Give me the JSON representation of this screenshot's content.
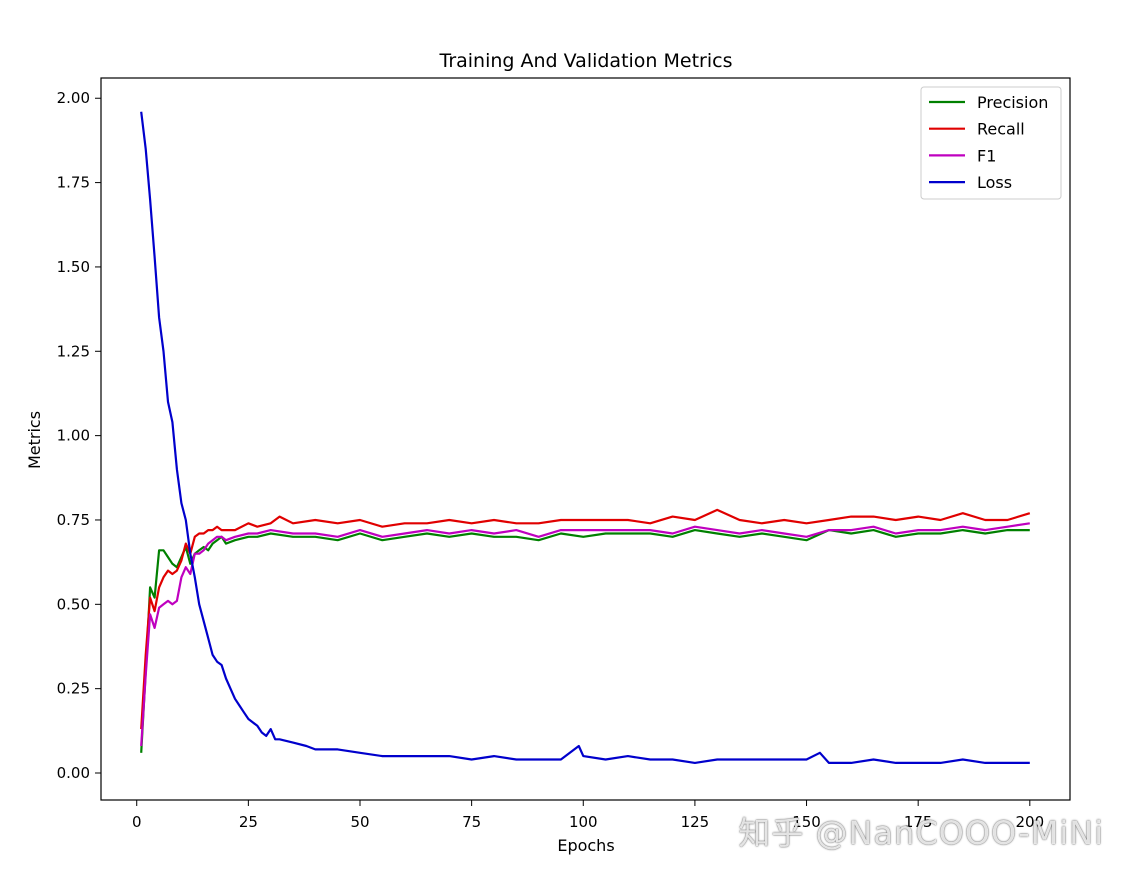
{
  "chart_data": {
    "type": "line",
    "title": "Training And Validation Metrics",
    "xlabel": "Epochs",
    "ylabel": "Metrics",
    "xlim": [
      -8,
      209
    ],
    "ylim": [
      -0.08,
      2.06
    ],
    "xticks": [
      0,
      25,
      50,
      75,
      100,
      125,
      150,
      175,
      200
    ],
    "yticks": [
      0.0,
      0.25,
      0.5,
      0.75,
      1.0,
      1.25,
      1.5,
      1.75,
      2.0
    ],
    "ytick_labels": [
      "0.00",
      "0.25",
      "0.50",
      "0.75",
      "1.00",
      "1.25",
      "1.50",
      "1.75",
      "2.00"
    ],
    "grid": false,
    "legend_position": "top-right",
    "series": [
      {
        "name": "Precision",
        "color": "#008000",
        "x": [
          1,
          2,
          3,
          4,
          5,
          6,
          7,
          8,
          9,
          10,
          11,
          12,
          13,
          14,
          15,
          16,
          17,
          18,
          19,
          20,
          22,
          25,
          27,
          30,
          35,
          40,
          45,
          50,
          55,
          60,
          65,
          70,
          75,
          80,
          85,
          90,
          95,
          100,
          105,
          110,
          115,
          120,
          125,
          130,
          135,
          140,
          145,
          150,
          155,
          160,
          165,
          170,
          175,
          180,
          185,
          190,
          195,
          200
        ],
        "values": [
          0.06,
          0.3,
          0.55,
          0.52,
          0.66,
          0.66,
          0.64,
          0.62,
          0.61,
          0.64,
          0.67,
          0.62,
          0.65,
          0.66,
          0.67,
          0.66,
          0.68,
          0.69,
          0.7,
          0.68,
          0.69,
          0.7,
          0.7,
          0.71,
          0.7,
          0.7,
          0.69,
          0.71,
          0.69,
          0.7,
          0.71,
          0.7,
          0.71,
          0.7,
          0.7,
          0.69,
          0.71,
          0.7,
          0.71,
          0.71,
          0.71,
          0.7,
          0.72,
          0.71,
          0.7,
          0.71,
          0.7,
          0.69,
          0.72,
          0.71,
          0.72,
          0.7,
          0.71,
          0.71,
          0.72,
          0.71,
          0.72,
          0.72
        ]
      },
      {
        "name": "Recall",
        "color": "#e00000",
        "x": [
          1,
          2,
          3,
          4,
          5,
          6,
          7,
          8,
          9,
          10,
          11,
          12,
          13,
          14,
          15,
          16,
          17,
          18,
          19,
          20,
          22,
          25,
          27,
          30,
          32,
          35,
          40,
          45,
          50,
          55,
          60,
          65,
          70,
          75,
          80,
          85,
          90,
          95,
          100,
          105,
          110,
          115,
          120,
          125,
          130,
          135,
          140,
          145,
          150,
          155,
          160,
          165,
          170,
          175,
          180,
          185,
          190,
          195,
          200
        ],
        "values": [
          0.13,
          0.35,
          0.52,
          0.48,
          0.55,
          0.58,
          0.6,
          0.59,
          0.6,
          0.63,
          0.68,
          0.65,
          0.7,
          0.71,
          0.71,
          0.72,
          0.72,
          0.73,
          0.72,
          0.72,
          0.72,
          0.74,
          0.73,
          0.74,
          0.76,
          0.74,
          0.75,
          0.74,
          0.75,
          0.73,
          0.74,
          0.74,
          0.75,
          0.74,
          0.75,
          0.74,
          0.74,
          0.75,
          0.75,
          0.75,
          0.75,
          0.74,
          0.76,
          0.75,
          0.78,
          0.75,
          0.74,
          0.75,
          0.74,
          0.75,
          0.76,
          0.76,
          0.75,
          0.76,
          0.75,
          0.77,
          0.75,
          0.75,
          0.77
        ]
      },
      {
        "name": "F1",
        "color": "#bf00bf",
        "x": [
          1,
          2,
          3,
          4,
          5,
          6,
          7,
          8,
          9,
          10,
          11,
          12,
          13,
          14,
          15,
          16,
          17,
          18,
          19,
          20,
          22,
          25,
          27,
          30,
          35,
          40,
          45,
          50,
          55,
          60,
          65,
          70,
          75,
          80,
          85,
          90,
          95,
          100,
          105,
          110,
          115,
          120,
          125,
          130,
          135,
          140,
          145,
          150,
          155,
          160,
          165,
          170,
          175,
          180,
          185,
          190,
          195,
          200
        ],
        "values": [
          0.08,
          0.29,
          0.47,
          0.43,
          0.49,
          0.5,
          0.51,
          0.5,
          0.51,
          0.58,
          0.61,
          0.59,
          0.65,
          0.65,
          0.66,
          0.68,
          0.69,
          0.7,
          0.7,
          0.69,
          0.7,
          0.71,
          0.71,
          0.72,
          0.71,
          0.71,
          0.7,
          0.72,
          0.7,
          0.71,
          0.72,
          0.71,
          0.72,
          0.71,
          0.72,
          0.7,
          0.72,
          0.72,
          0.72,
          0.72,
          0.72,
          0.71,
          0.73,
          0.72,
          0.71,
          0.72,
          0.71,
          0.7,
          0.72,
          0.72,
          0.73,
          0.71,
          0.72,
          0.72,
          0.73,
          0.72,
          0.73,
          0.74
        ]
      },
      {
        "name": "Loss",
        "color": "#0000cc",
        "x": [
          1,
          2,
          3,
          4,
          5,
          6,
          7,
          8,
          9,
          10,
          11,
          12,
          13,
          14,
          15,
          16,
          17,
          18,
          19,
          20,
          21,
          22,
          23,
          24,
          25,
          26,
          27,
          28,
          29,
          30,
          31,
          32,
          35,
          38,
          40,
          45,
          50,
          55,
          60,
          65,
          70,
          75,
          80,
          85,
          90,
          95,
          99,
          100,
          105,
          110,
          115,
          120,
          125,
          130,
          135,
          140,
          145,
          150,
          153,
          155,
          160,
          165,
          170,
          175,
          180,
          185,
          190,
          195,
          200
        ],
        "values": [
          1.96,
          1.85,
          1.7,
          1.53,
          1.35,
          1.25,
          1.1,
          1.04,
          0.9,
          0.8,
          0.75,
          0.65,
          0.58,
          0.5,
          0.45,
          0.4,
          0.35,
          0.33,
          0.32,
          0.28,
          0.25,
          0.22,
          0.2,
          0.18,
          0.16,
          0.15,
          0.14,
          0.12,
          0.11,
          0.13,
          0.1,
          0.1,
          0.09,
          0.08,
          0.07,
          0.07,
          0.06,
          0.05,
          0.05,
          0.05,
          0.05,
          0.04,
          0.05,
          0.04,
          0.04,
          0.04,
          0.08,
          0.05,
          0.04,
          0.05,
          0.04,
          0.04,
          0.03,
          0.04,
          0.04,
          0.04,
          0.04,
          0.04,
          0.06,
          0.03,
          0.03,
          0.04,
          0.03,
          0.03,
          0.03,
          0.04,
          0.03,
          0.03,
          0.03
        ]
      }
    ]
  },
  "watermark": "知乎 @NanCOOO-MiNi"
}
